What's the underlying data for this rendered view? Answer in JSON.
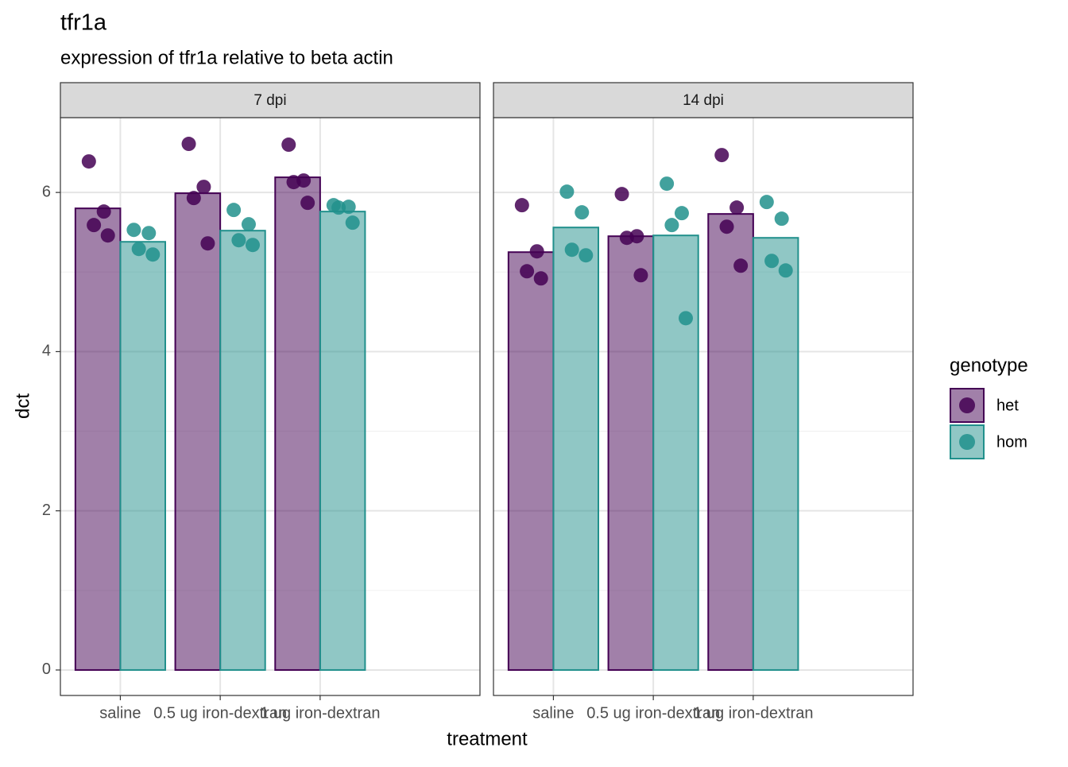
{
  "chart_data": {
    "type": "bar",
    "title": "tfr1a",
    "subtitle": "expression of tfr1a relative to beta actin",
    "x_label": "treatment",
    "y_label": "dct",
    "legend_title": "genotype",
    "categories": [
      "saline",
      "0.5 ug iron-dextran",
      "1 ug iron-dextran"
    ],
    "ylim": [
      -0.32,
      6.94
    ],
    "yticks": [
      0,
      2,
      4,
      6
    ],
    "minor_yticks": [
      1,
      3,
      5
    ],
    "grid": true,
    "facets": [
      {
        "label": "7 dpi",
        "series": [
          {
            "name": "het",
            "color": "#440154",
            "values": [
              5.8,
              5.99,
              6.19
            ],
            "points": [
              [
                6.39,
                5.76,
                5.59,
                5.46
              ],
              [
                6.61,
                6.07,
                5.93,
                5.36
              ],
              [
                6.6,
                6.15,
                6.13,
                5.87
              ]
            ]
          },
          {
            "name": "hom",
            "color": "#21908C",
            "values": [
              5.38,
              5.52,
              5.76
            ],
            "points": [
              [
                5.53,
                5.49,
                5.29,
                5.22
              ],
              [
                5.78,
                5.6,
                5.4,
                5.34
              ],
              [
                5.84,
                5.82,
                5.81,
                5.62
              ]
            ]
          }
        ]
      },
      {
        "label": "14 dpi",
        "series": [
          {
            "name": "het",
            "color": "#440154",
            "values": [
              5.25,
              5.45,
              5.73
            ],
            "points": [
              [
                5.84,
                5.26,
                5.01,
                4.92
              ],
              [
                5.98,
                5.45,
                5.43,
                4.96
              ],
              [
                6.47,
                5.81,
                5.57,
                5.08
              ]
            ]
          },
          {
            "name": "hom",
            "color": "#21908C",
            "values": [
              5.56,
              5.46,
              5.43
            ],
            "points": [
              [
                6.01,
                5.75,
                5.28,
                5.21
              ],
              [
                6.11,
                5.74,
                5.59,
                4.42
              ],
              [
                5.88,
                5.67,
                5.14,
                5.02
              ]
            ]
          }
        ]
      }
    ]
  }
}
